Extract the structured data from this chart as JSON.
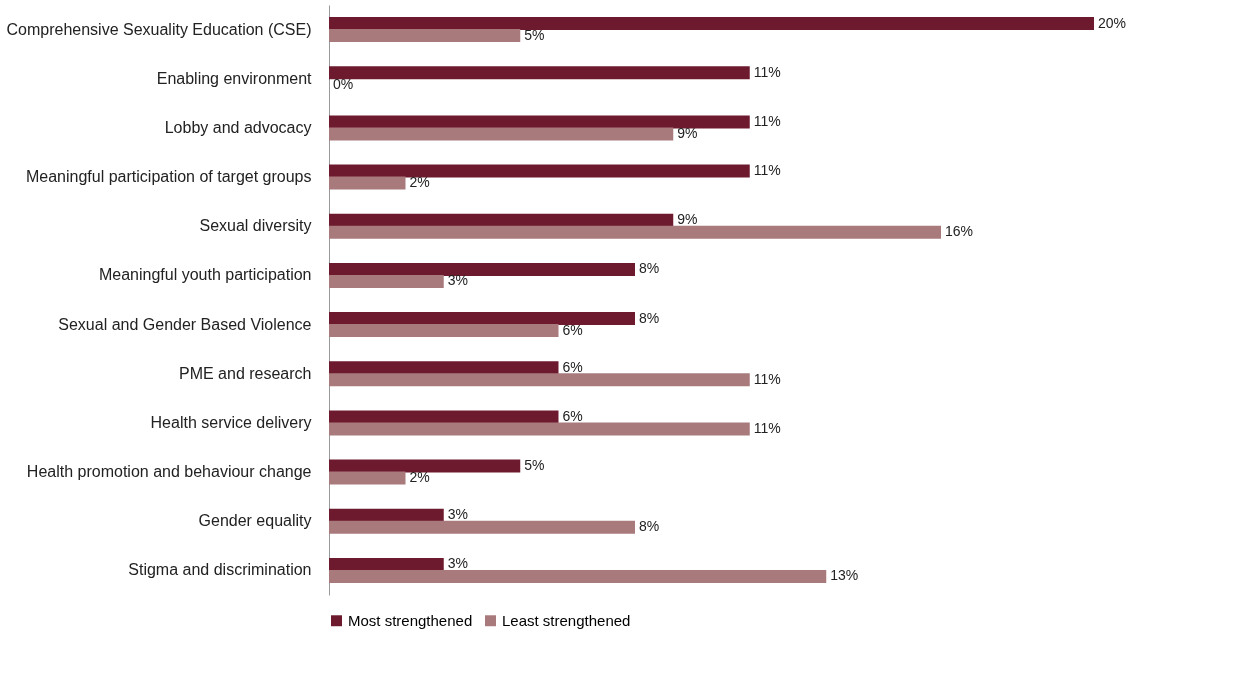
{
  "chart_data": {
    "type": "bar",
    "orientation": "horizontal",
    "legend": "bottom",
    "grid": false,
    "categories": [
      "Comprehensive Sexuality Education (CSE)",
      "Enabling environment",
      "Lobby and advocacy",
      "Meaningful participation of target groups",
      "Sexual diversity",
      "Meaningful youth participation",
      "Sexual and Gender Based Violence",
      "PME and research",
      "Health service delivery",
      "Health promotion and behaviour change",
      "Gender equality",
      "Stigma and discrimination"
    ],
    "series": [
      {
        "name": "Most strengthened",
        "color": "#6e1a2e",
        "values": [
          20,
          11,
          11,
          11,
          9,
          8,
          8,
          6,
          6,
          5,
          3,
          3
        ],
        "value_labels": [
          "20%",
          "11%",
          "11%",
          "11%",
          "9%",
          "8%",
          "8%",
          "6%",
          "6%",
          "5%",
          "3%",
          "3%"
        ]
      },
      {
        "name": "Least strengthened",
        "color": "#a87a7c",
        "values": [
          5,
          0,
          9,
          2,
          16,
          3,
          6,
          11,
          11,
          2,
          8,
          13
        ],
        "value_labels": [
          "5%",
          "0%",
          "9%",
          "2%",
          "16%",
          "3%",
          "6%",
          "11%",
          "11%",
          "2%",
          "8%",
          "13%"
        ]
      }
    ]
  }
}
